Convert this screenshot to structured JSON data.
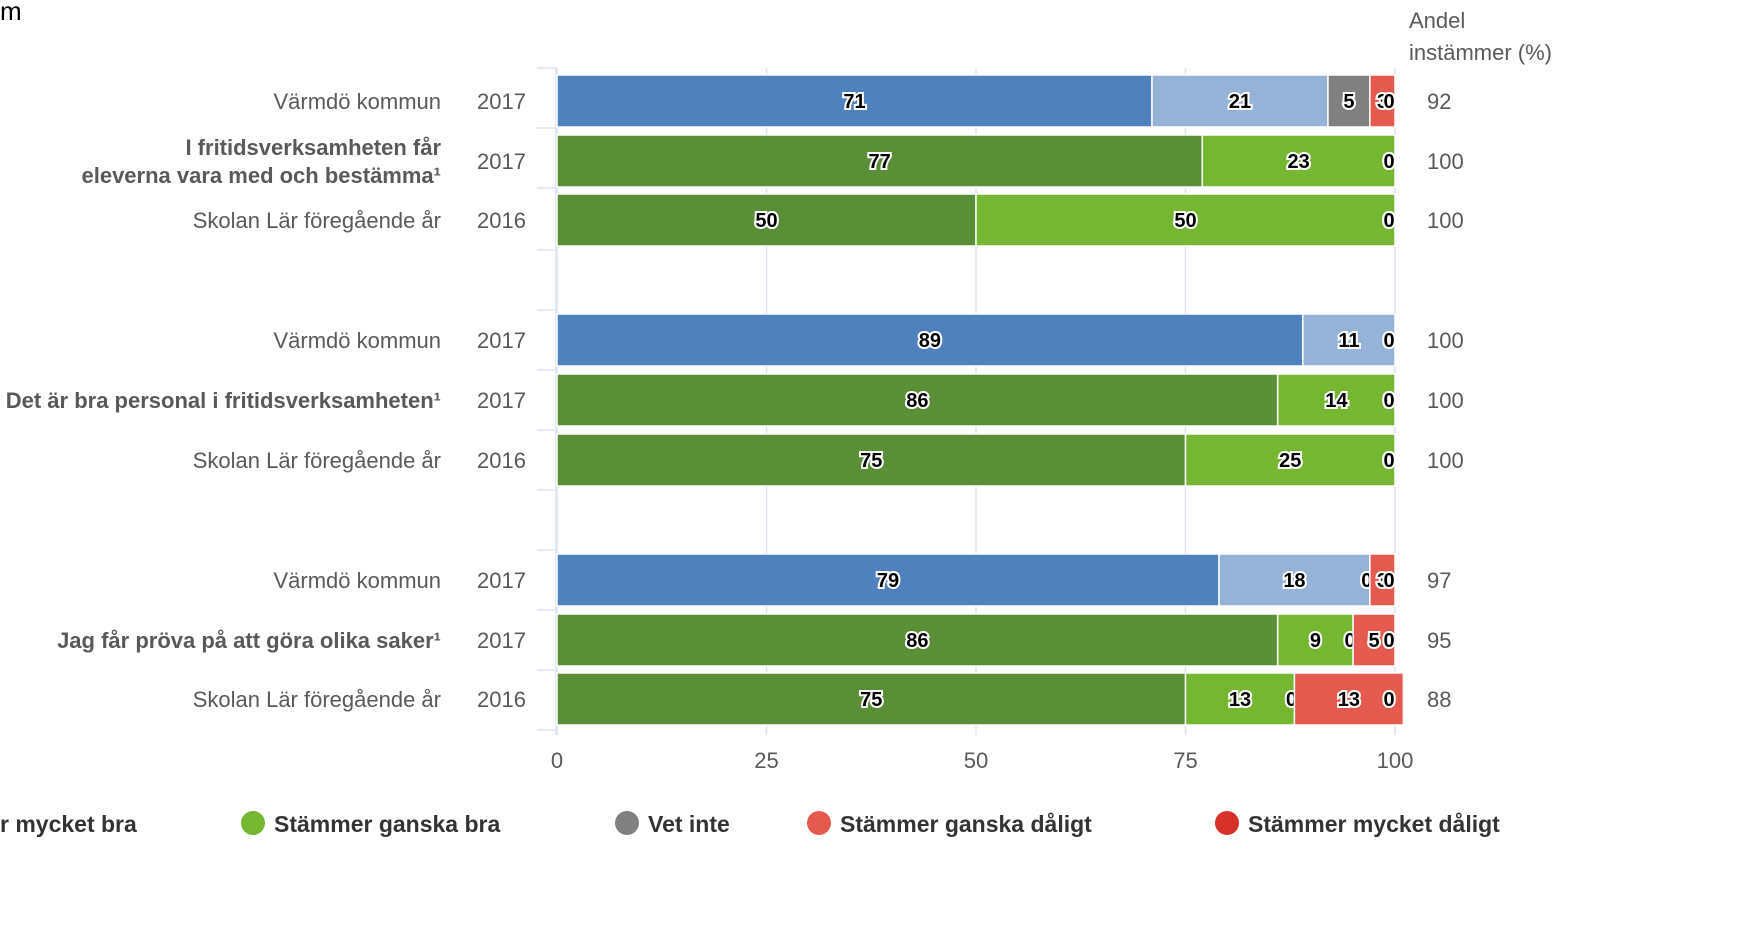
{
  "page": {
    "top_fragment": "m",
    "percent_header_line1": "Andel",
    "percent_header_line2": "instämmer (%)"
  },
  "colors": {
    "stammer_mycket_bra_kommun": "#4f81bd",
    "stammer_ganska_bra_kommun": "#95b3d7",
    "stammer_mycket_bra_skola": "#5a8f37",
    "stammer_ganska_bra_skola": "#76b732",
    "vet_inte": "#808080",
    "stammer_ganska_daligt": "#e55a4e",
    "stammer_mycket_daligt": "#d7312a",
    "grid": "#dde3ee"
  },
  "chart_data": {
    "type": "bar",
    "orientation": "horizontal",
    "stacked": true,
    "xlim": [
      0,
      100
    ],
    "x_ticks": [
      0,
      25,
      50,
      75,
      100
    ],
    "grid": true,
    "legend_position": "bottom",
    "legend": [
      {
        "label": "Stämmer mycket bra",
        "color": "#5a8f37",
        "visible_text": "r mycket bra"
      },
      {
        "label": "Stämmer ganska bra",
        "color": "#76b732"
      },
      {
        "label": "Vet inte",
        "color": "#808080"
      },
      {
        "label": "Stämmer ganska dåligt",
        "color": "#e55a4e"
      },
      {
        "label": "Stämmer mycket dåligt",
        "color": "#d7312a"
      }
    ],
    "groups": [
      {
        "question": [
          "I fritidsverksamheten får",
          "eleverna vara med och bestämma¹"
        ],
        "rows": [
          {
            "name": "Värmdö kommun",
            "year": "2017",
            "palette": "kommun",
            "values": [
              71,
              21,
              5,
              3,
              0
            ],
            "pct": 92
          },
          {
            "name": "",
            "year": "2017",
            "palette": "skola",
            "values": [
              77,
              23,
              0,
              0,
              0
            ],
            "pct": 100
          },
          {
            "name": "Skolan Lär föregående år",
            "year": "2016",
            "palette": "skola",
            "values": [
              50,
              50,
              0,
              0,
              0
            ],
            "pct": 100
          }
        ]
      },
      {
        "question": [
          "Det är bra personal i fritidsverksamheten¹"
        ],
        "rows": [
          {
            "name": "Värmdö kommun",
            "year": "2017",
            "palette": "kommun",
            "values": [
              89,
              11,
              0,
              0,
              0
            ],
            "pct": 100
          },
          {
            "name": "",
            "year": "2017",
            "palette": "skola",
            "values": [
              86,
              14,
              0,
              0,
              0
            ],
            "pct": 100
          },
          {
            "name": "Skolan Lär föregående år",
            "year": "2016",
            "palette": "skola",
            "values": [
              75,
              25,
              0,
              0,
              0
            ],
            "pct": 100
          }
        ]
      },
      {
        "question": [
          "Jag får pröva på att göra olika saker¹"
        ],
        "rows": [
          {
            "name": "Värmdö kommun",
            "year": "2017",
            "palette": "kommun",
            "values": [
              79,
              18,
              0,
              3,
              0
            ],
            "pct": 97
          },
          {
            "name": "",
            "year": "2017",
            "palette": "skola",
            "values": [
              86,
              9,
              0,
              5,
              0
            ],
            "pct": 95
          },
          {
            "name": "Skolan Lär föregående år",
            "year": "2016",
            "palette": "skola",
            "values": [
              75,
              13,
              0,
              13,
              0
            ],
            "pct": 88
          }
        ]
      }
    ]
  }
}
